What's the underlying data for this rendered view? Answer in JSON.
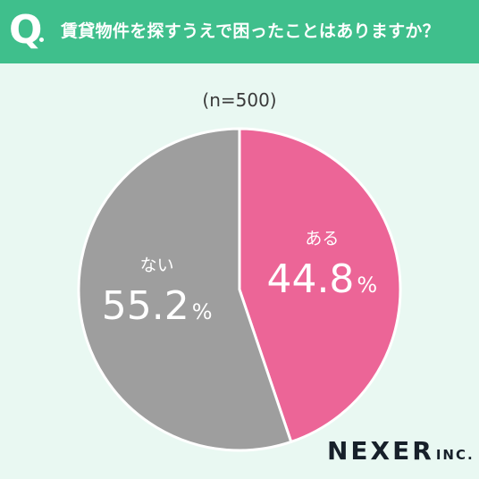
{
  "header": {
    "q_label": "Q",
    "question": "賃貸物件を探すうえで困ったことはありますか？"
  },
  "sample_label": "(n=500)",
  "logo": {
    "name": "NEXER",
    "suffix": "INC."
  },
  "colors": {
    "background": "#e9f8f2",
    "header": "#3fbf8c",
    "yes": "#ec6597",
    "no": "#9e9e9e"
  },
  "chart_data": {
    "type": "pie",
    "title": "賃貸物件を探すうえで困ったことはありますか？",
    "slices": [
      {
        "label": "ある",
        "value": 44.8,
        "display": "44.8",
        "unit": "%",
        "color": "#ec6597"
      },
      {
        "label": "ない",
        "value": 55.2,
        "display": "55.2",
        "unit": "%",
        "color": "#9e9e9e"
      }
    ],
    "start": "top",
    "direction": "clockwise"
  }
}
